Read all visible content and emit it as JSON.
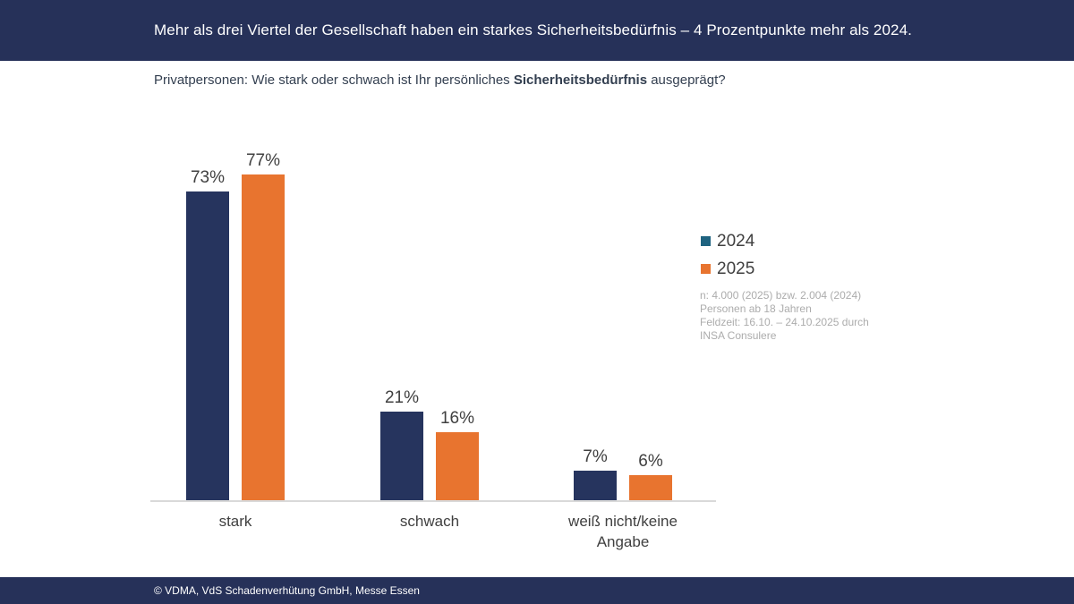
{
  "header": {
    "title": "Mehr als drei Viertel der Gesellschaft haben ein starkes Sicherheitsbedürfnis – 4 Prozentpunkte mehr als 2024.",
    "bg_color": "#263159",
    "text_color": "#FFFFFF"
  },
  "subtitle": {
    "prefix": "Privatpersonen: Wie stark oder schwach ist Ihr persönliches ",
    "bold": "Sicherheitsbedürfnis",
    "suffix": " ausgeprägt?"
  },
  "chart_data": {
    "type": "bar",
    "categories": [
      "stark",
      "schwach",
      "weiß nicht/keine Angabe"
    ],
    "series": [
      {
        "name": "2024",
        "color": "#26345E",
        "legend_color": "#1F6380",
        "values": [
          73,
          21,
          7
        ]
      },
      {
        "name": "2025",
        "color": "#E8742F",
        "legend_color": "#E8742F",
        "values": [
          77,
          16,
          6
        ]
      }
    ],
    "value_suffix": "%",
    "ylim": [
      0,
      100
    ],
    "grid": false,
    "legend_position": "right",
    "axis_line_color": "#D9D9D9",
    "data_label_color": "#404040"
  },
  "note": {
    "lines": [
      "n: 4.000 (2025) bzw. 2.004 (2024)",
      "Personen ab 18 Jahren",
      "Feldzeit: 16.10. – 24.10.2025 durch",
      "INSA Consulere"
    ]
  },
  "footer": {
    "text": "© VDMA, VdS Schadenverhütung GmbH, Messe Essen"
  }
}
